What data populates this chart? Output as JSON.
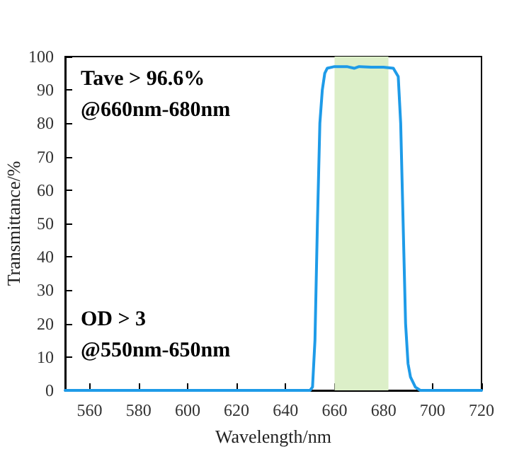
{
  "chart_data": {
    "type": "line",
    "xlabel": "Wavelength/nm",
    "ylabel": "Transmittance/%",
    "xlim": [
      550,
      720
    ],
    "xticks": [
      560,
      580,
      600,
      620,
      640,
      660,
      680,
      700,
      720
    ],
    "ylim": [
      0,
      100
    ],
    "yticks": [
      0,
      10,
      20,
      30,
      40,
      50,
      60,
      70,
      80,
      90,
      100
    ],
    "grid": false,
    "marker": "none",
    "line_style": "solid",
    "series": [
      {
        "color": "#1e9be8",
        "x": [
          550,
          600,
          645,
          650,
          651,
          652,
          653,
          654,
          655,
          656,
          657,
          660,
          665,
          668,
          670,
          675,
          680,
          684,
          686,
          687,
          688,
          689,
          690,
          691,
          693,
          695,
          720
        ],
        "values": [
          0,
          0,
          0,
          0,
          1,
          15,
          50,
          80,
          90,
          95,
          96.5,
          97,
          97,
          96.5,
          97,
          96.8,
          96.8,
          96.5,
          94,
          80,
          50,
          20,
          8,
          4,
          1,
          0,
          0
        ]
      }
    ],
    "bands": [
      {
        "axis": "x",
        "from": 660,
        "to": 682,
        "color": "#dcefc8"
      }
    ],
    "annotations": [
      "Tave > 96.6%\n@660nm-680nm",
      "OD > 3\n@550nm-650nm"
    ]
  }
}
